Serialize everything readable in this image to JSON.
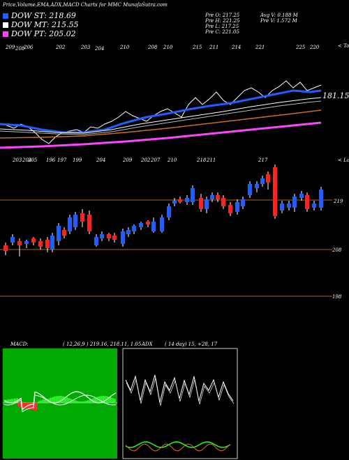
{
  "header": {
    "title": "Price,Volume,EMA,ADX,MACD Charts for MMC MunafaSutra.com"
  },
  "legend": [
    {
      "label": "DOW ST: 218.69",
      "color": "#1f5fff"
    },
    {
      "label": "DOW MT: 215.55",
      "color": "#ffffff"
    },
    {
      "label": "DOW PT: 205.02",
      "color": "#ff44ff"
    }
  ],
  "ohlc": {
    "open": "Pre  O: 217.25",
    "high": "Pre  H: 221.25",
    "low": "Pre  L: 217.25",
    "close": "Pre  C: 221.05",
    "avg_vol": "Avg V: 0.188  M",
    "pre_vol": "Pre  V: 1.572  M"
  },
  "chart_data": [
    {
      "type": "line",
      "name": "EMA panel",
      "top_labels": [
        "209",
        "208",
        "206",
        "202",
        "203",
        "204",
        "210",
        "208",
        "210",
        "215",
        "211",
        "214",
        "221",
        "225",
        "220"
      ],
      "top_right_label": "< Tops",
      "price_label": "181.15",
      "colors": {
        "price": "#ffffff",
        "ema_short": "#1f5fff",
        "ema_mid": "#ffffff",
        "ema_long": "#c87020",
        "ema_pt": "#ff44ff"
      }
    },
    {
      "type": "candlestick",
      "name": "Candles",
      "bottom_labels": [
        "203",
        "204",
        "205",
        "196",
        "197",
        "199",
        "204",
        "209",
        "202",
        "207",
        "210",
        "218",
        "211",
        "217"
      ],
      "bottom_right_label": "< Lows",
      "price_levels": [
        219,
        208,
        198
      ],
      "price_level_labels": [
        "219",
        "208",
        "198"
      ]
    },
    {
      "type": "bar",
      "name": "MACD",
      "label": "MACD:",
      "params": "( 12,26,9 ) 219.16, 218.11, 1.05"
    },
    {
      "type": "line",
      "name": "ADX",
      "label": "ADX",
      "params": "( 14  day) 15,  +28,  17"
    }
  ]
}
